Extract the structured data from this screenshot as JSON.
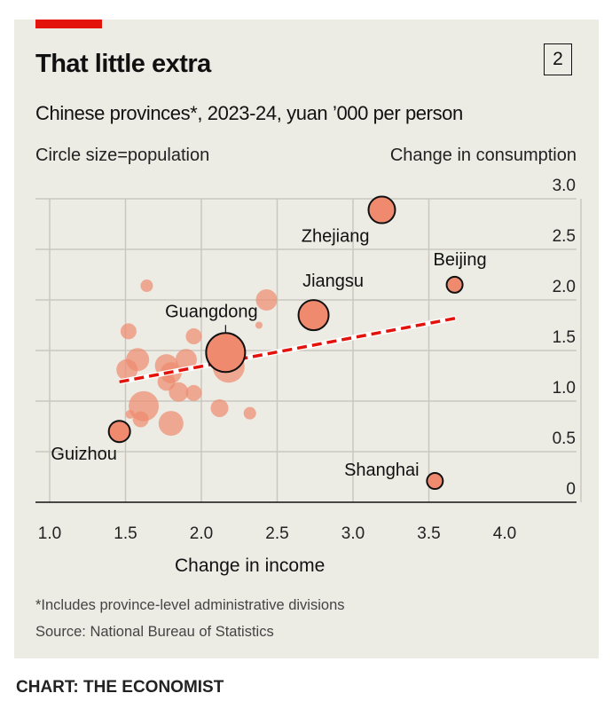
{
  "header": {
    "title": "That little extra",
    "chart_number": "2",
    "subtitle": "Chinese provinces*, 2023-24, yuan ’000 per person",
    "size_note": "Circle size=population"
  },
  "footer": {
    "footnote": "*Includes province-level administrative divisions",
    "source": "Source: National Bureau of Statistics",
    "credit": "CHART: THE ECONOMIST"
  },
  "colors": {
    "accent": "#e3120b",
    "bubble": "#f08a6e",
    "trend": "#e3120b",
    "background": "#ecebe4"
  },
  "chart_data": {
    "type": "scatter",
    "title": "That little extra",
    "xlabel": "Change in income",
    "ylabel": "Change in consumption",
    "xlim": [
      1.0,
      4.0
    ],
    "ylim": [
      0,
      3.0
    ],
    "xticks": [
      "1.0",
      "1.5",
      "2.0",
      "2.5",
      "3.0",
      "3.5",
      "4.0"
    ],
    "yticks": [
      "0",
      "0.5",
      "1.0",
      "1.5",
      "2.0",
      "2.5",
      "3.0"
    ],
    "grid": true,
    "labelled_points": [
      {
        "name": "Zhejiang",
        "x": 3.19,
        "y": 2.89,
        "size": 15
      },
      {
        "name": "Beijing",
        "x": 3.67,
        "y": 2.15,
        "size": 9
      },
      {
        "name": "Jiangsu",
        "x": 2.74,
        "y": 1.85,
        "size": 17
      },
      {
        "name": "Guangdong",
        "x": 2.16,
        "y": 1.48,
        "size": 22
      },
      {
        "name": "Guizhou",
        "x": 1.46,
        "y": 0.7,
        "size": 12
      },
      {
        "name": "Shanghai",
        "x": 3.54,
        "y": 0.21,
        "size": 9
      }
    ],
    "other_points": [
      {
        "x": 1.64,
        "y": 2.14,
        "size": 7
      },
      {
        "x": 2.43,
        "y": 2.0,
        "size": 12
      },
      {
        "x": 2.38,
        "y": 1.75,
        "size": 4
      },
      {
        "x": 1.52,
        "y": 1.69,
        "size": 9
      },
      {
        "x": 1.95,
        "y": 1.64,
        "size": 9
      },
      {
        "x": 2.18,
        "y": 1.34,
        "size": 18
      },
      {
        "x": 1.58,
        "y": 1.41,
        "size": 13
      },
      {
        "x": 1.51,
        "y": 1.31,
        "size": 12
      },
      {
        "x": 1.77,
        "y": 1.35,
        "size": 13
      },
      {
        "x": 1.9,
        "y": 1.41,
        "size": 12
      },
      {
        "x": 1.8,
        "y": 1.28,
        "size": 12
      },
      {
        "x": 1.77,
        "y": 1.19,
        "size": 10
      },
      {
        "x": 1.85,
        "y": 1.09,
        "size": 11
      },
      {
        "x": 1.95,
        "y": 1.08,
        "size": 9
      },
      {
        "x": 1.62,
        "y": 0.95,
        "size": 17
      },
      {
        "x": 1.6,
        "y": 0.82,
        "size": 9
      },
      {
        "x": 1.53,
        "y": 0.87,
        "size": 5
      },
      {
        "x": 1.8,
        "y": 0.78,
        "size": 14
      },
      {
        "x": 2.12,
        "y": 0.93,
        "size": 10
      },
      {
        "x": 2.32,
        "y": 0.88,
        "size": 7
      }
    ],
    "trendline": {
      "x": [
        1.46,
        3.68
      ],
      "y": [
        1.19,
        1.82
      ]
    }
  }
}
